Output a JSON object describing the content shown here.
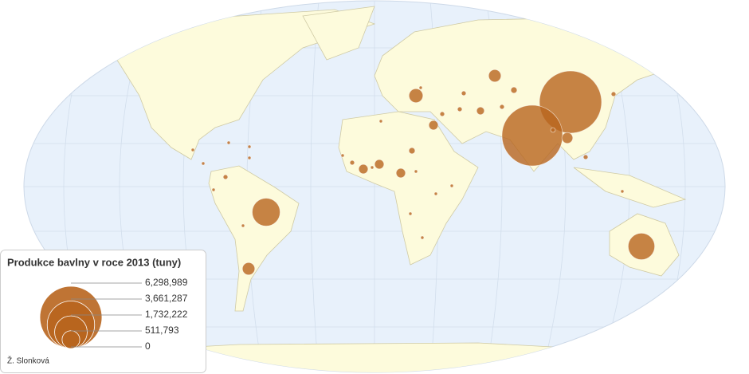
{
  "chart_data": {
    "type": "bubble-map",
    "color": "#b8651e",
    "legend_title": "Produkce bavlny v roce 2013 (tuny)",
    "legend_ticks": [
      {
        "value": 6298989,
        "label": "6,298,989"
      },
      {
        "value": 3661287,
        "label": "3,661,287"
      },
      {
        "value": 1732222,
        "label": "1,732,222"
      },
      {
        "value": 511793,
        "label": "511,793"
      },
      0
    ],
    "credit": "Ž. Slonková",
    "values": [
      6298989,
      6000000,
      1270000,
      1150000,
      252000,
      319000,
      252000,
      142000,
      142000,
      142000,
      142000,
      63000,
      98000,
      63000,
      35000,
      35000,
      35000,
      35000,
      35000,
      35000,
      16000,
      35000,
      16000,
      35000,
      16000,
      16000,
      16000,
      16000,
      16000,
      16000,
      16000,
      35000,
      16000,
      16000,
      16000,
      16000,
      16000,
      16000,
      16000,
      16000,
      193000
    ]
  }
}
